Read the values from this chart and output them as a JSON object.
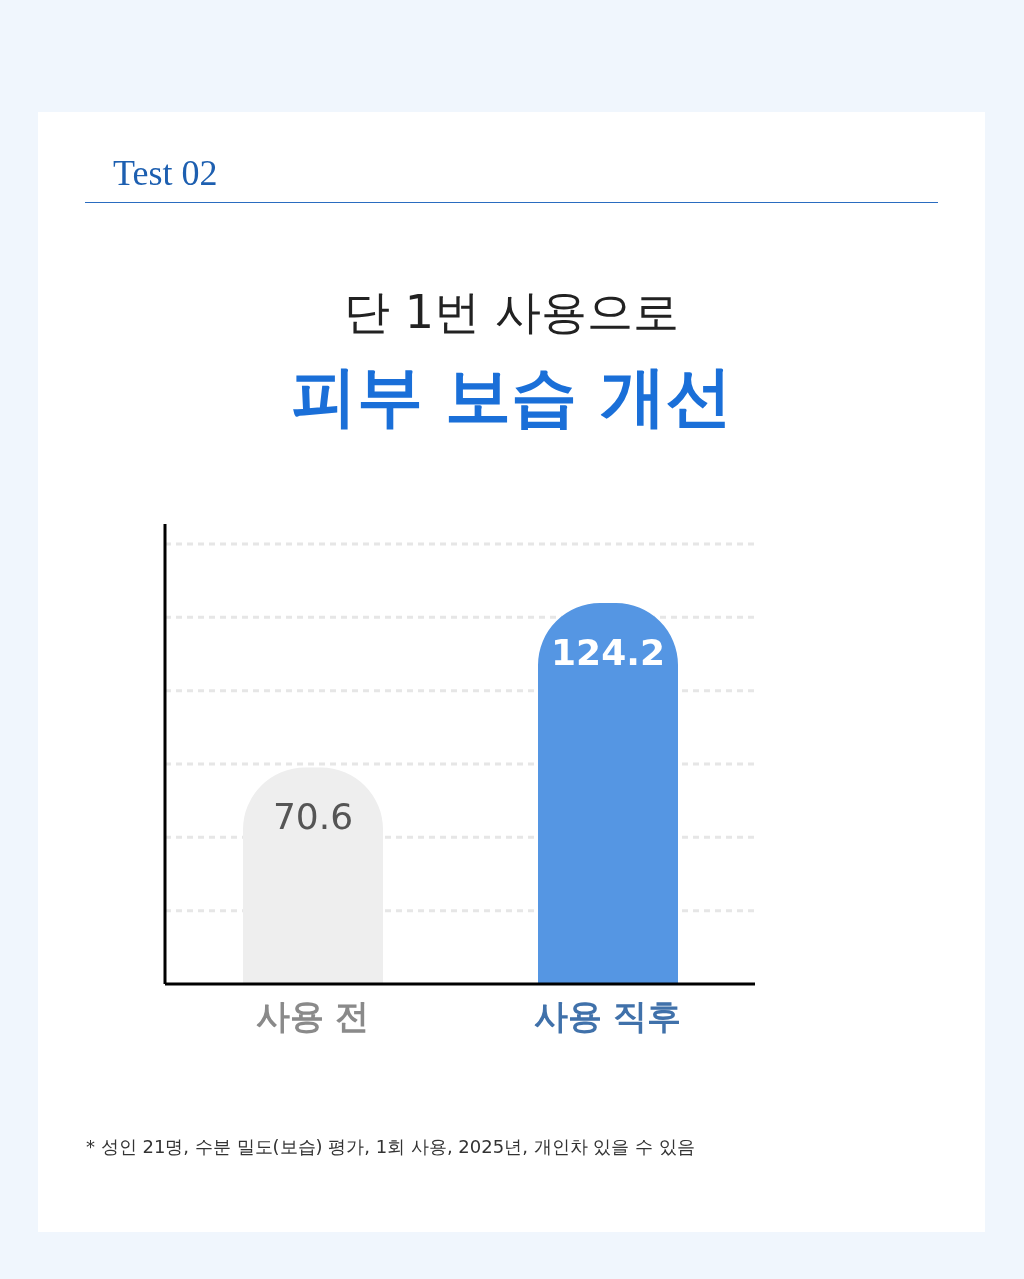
{
  "chart_data": {
    "type": "bar",
    "title": "단 1번 사용으로",
    "subtitle": "피부 보습 개선",
    "annotations": [
      "Test 02",
      "* 성인 21명, 수분 밀도(보습) 평가, 1회 사용, 2025년, 개인차 있을 수 있음"
    ],
    "categories": [
      "사용 전",
      "사용 직후"
    ],
    "values": [
      70.6,
      124.2
    ],
    "colors": [
      "#eeeeee",
      "#5596e3"
    ],
    "data_labels": true,
    "ylim": [
      0,
      150
    ],
    "grid": "y",
    "tick_labels": "x"
  }
}
